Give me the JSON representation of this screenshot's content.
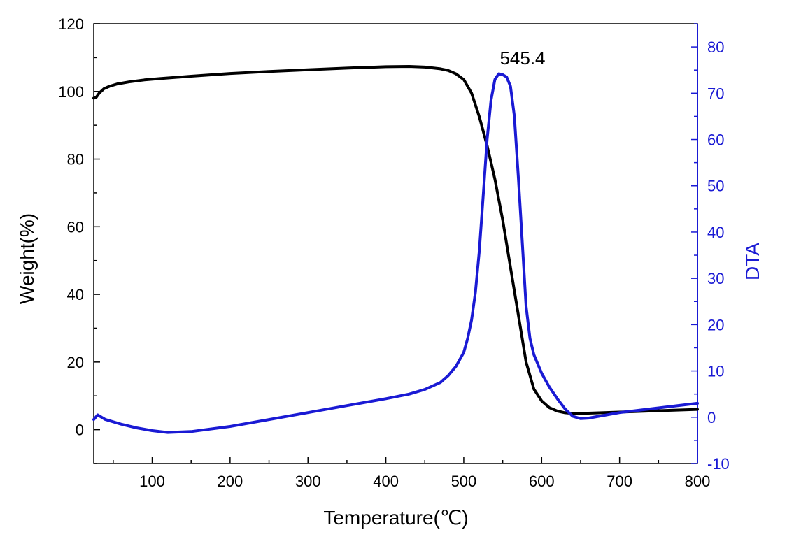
{
  "chart_data": {
    "type": "line",
    "title": "",
    "xlabel": "Temperature(℃)",
    "ylabel": "Weight(%)",
    "y2label": "DTA",
    "xlim": [
      25,
      800
    ],
    "ylim": [
      -10,
      120
    ],
    "y2lim": [
      -10,
      85
    ],
    "x_ticks": [
      100,
      200,
      300,
      400,
      500,
      600,
      700,
      800
    ],
    "y_ticks": [
      0,
      20,
      40,
      60,
      80,
      100,
      120
    ],
    "y2_ticks": [
      -10,
      0,
      10,
      20,
      30,
      40,
      50,
      60,
      70,
      80
    ],
    "grid": false,
    "annotation": {
      "text": "545.4",
      "x": 545.4,
      "y2": 77
    },
    "series": [
      {
        "axis": "left",
        "color": "#000000",
        "x": [
          25,
          28,
          32,
          38,
          45,
          55,
          70,
          90,
          110,
          150,
          200,
          250,
          300,
          350,
          400,
          430,
          450,
          470,
          480,
          490,
          500,
          510,
          520,
          530,
          540,
          550,
          560,
          570,
          580,
          590,
          600,
          610,
          620,
          630,
          640,
          650,
          700,
          750,
          800
        ],
        "y": [
          98,
          98.2,
          99.5,
          100.8,
          101.5,
          102.2,
          102.8,
          103.4,
          103.8,
          104.5,
          105.3,
          105.9,
          106.4,
          106.9,
          107.3,
          107.4,
          107.2,
          106.7,
          106.2,
          105.2,
          103.5,
          99.5,
          92.5,
          84,
          74,
          62,
          48,
          34,
          20,
          12,
          8.5,
          6.5,
          5.5,
          5,
          4.8,
          4.8,
          5.2,
          5.6,
          6
        ]
      },
      {
        "axis": "right",
        "color": "#1a1ad4",
        "x": [
          25,
          30,
          40,
          60,
          80,
          100,
          120,
          150,
          200,
          250,
          300,
          350,
          400,
          430,
          450,
          470,
          480,
          490,
          500,
          505,
          510,
          515,
          520,
          525,
          530,
          535,
          540,
          545,
          550,
          555,
          560,
          565,
          570,
          575,
          580,
          585,
          590,
          600,
          610,
          620,
          630,
          640,
          650,
          660,
          680,
          700,
          750,
          800
        ],
        "y": [
          -0.5,
          0.5,
          -0.5,
          -1.5,
          -2.3,
          -2.9,
          -3.3,
          -3.1,
          -2,
          -0.5,
          1,
          2.5,
          4,
          5,
          6,
          7.5,
          9,
          11,
          14,
          17,
          21,
          27,
          36,
          48,
          60,
          68.5,
          73,
          74.2,
          74,
          73.5,
          71.5,
          65,
          52,
          38,
          24,
          17,
          13.5,
          9.5,
          6.5,
          4,
          1.8,
          0.2,
          -0.3,
          -0.2,
          0.4,
          1,
          2,
          3
        ]
      }
    ]
  }
}
